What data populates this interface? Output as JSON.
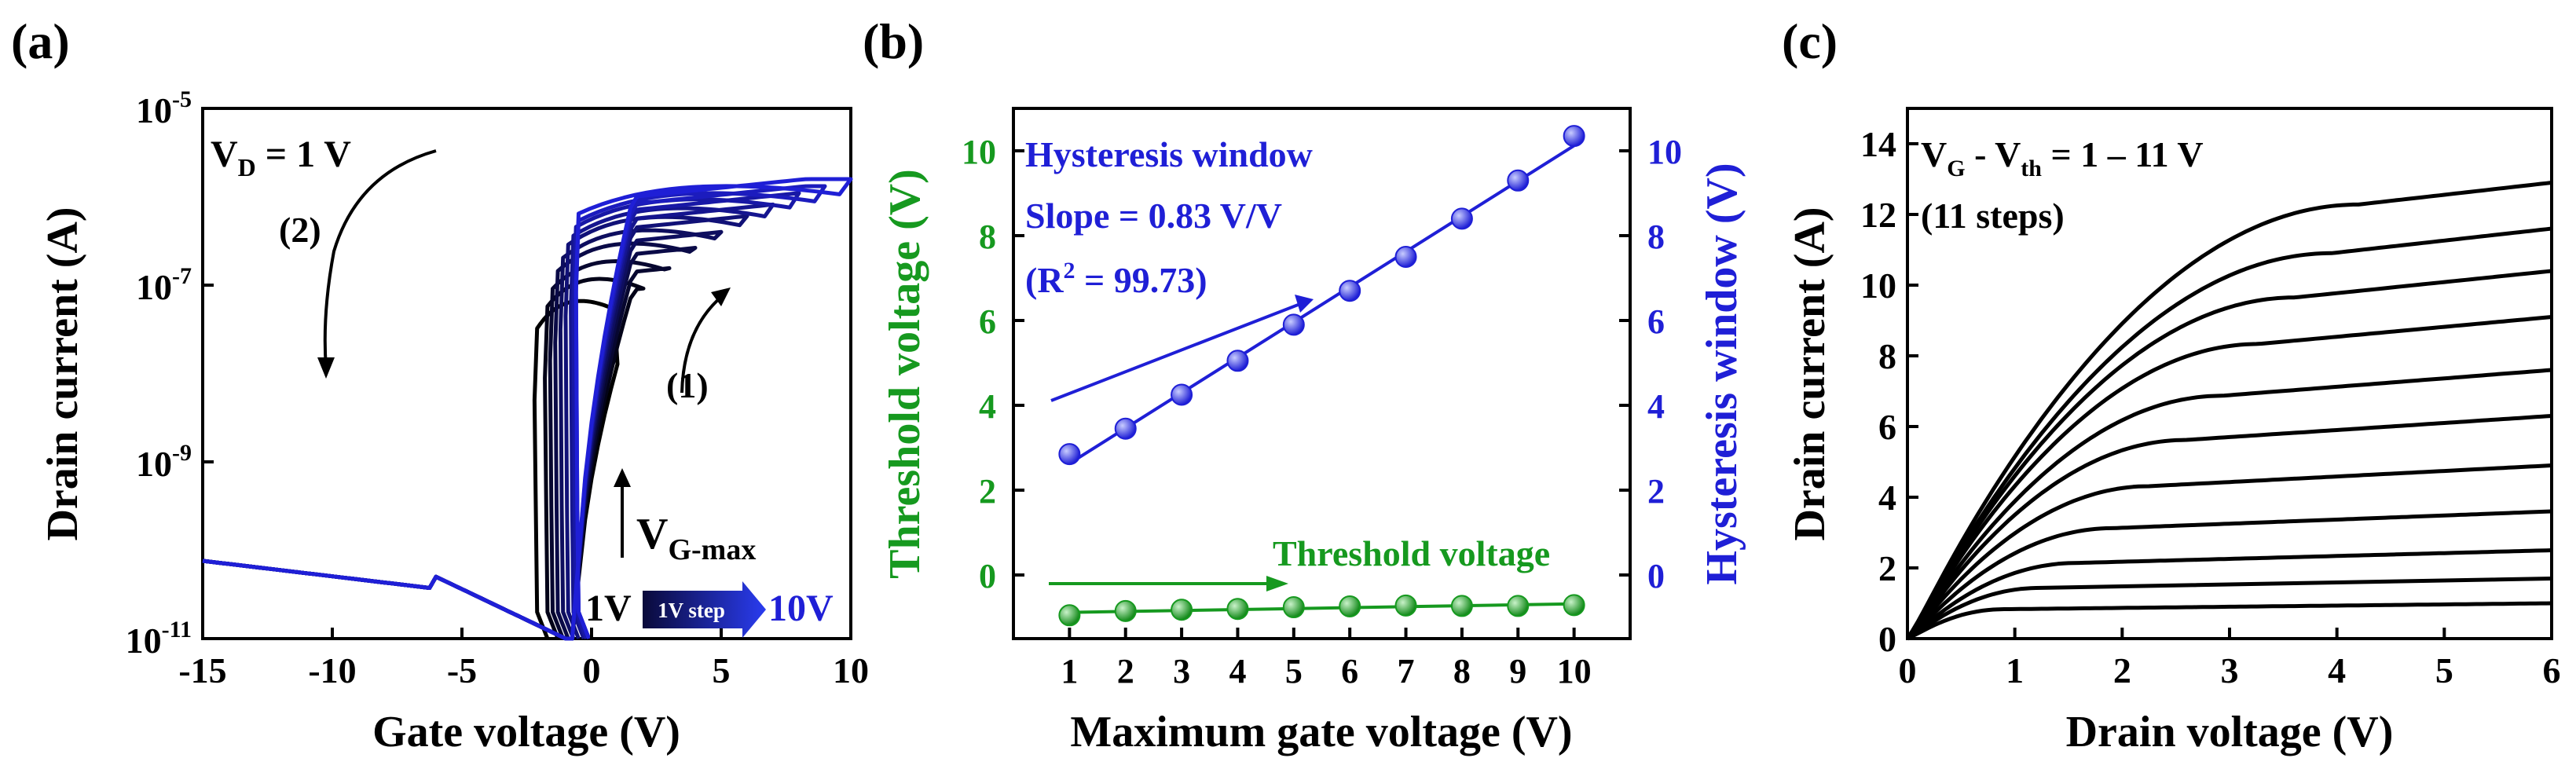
{
  "colors": {
    "black": "#000000",
    "blue": "#1f1fd6",
    "green": "#16991f"
  },
  "chart_data": [
    {
      "panel": "(a)",
      "type": "line",
      "title": "",
      "xlabel": "Gate voltage (V)",
      "ylabel": "Drain current (A)",
      "xlim": [
        -15,
        10
      ],
      "ylim_log10": [
        -11,
        -5
      ],
      "x_ticks": [
        "-15",
        "-10",
        "-5",
        "0",
        "5",
        "10"
      ],
      "y_ticks": [
        {
          "base": "10",
          "exp": "-11"
        },
        {
          "base": "10",
          "exp": "-9"
        },
        {
          "base": "10",
          "exp": "-7"
        },
        {
          "base": "10",
          "exp": "-5"
        }
      ],
      "annotations": {
        "vd_main": "V",
        "vd_sub": "D",
        "vd_rest": " = 1 V",
        "sweep1": "(1)",
        "sweep2": "(2)",
        "vgmax_main": "V",
        "vgmax_sub": "G-max",
        "range_start": "1V",
        "range_step": "1V step",
        "range_end": "10V"
      },
      "series_param": "V_G-max",
      "series": [
        {
          "name": "V_G-max = 1 V",
          "vgmax": 1,
          "hysteresis_window_v": 2.9,
          "i_on_log10": -7.1
        },
        {
          "name": "V_G-max = 2 V",
          "vgmax": 2,
          "hysteresis_window_v": 3.5,
          "i_on_log10": -6.85
        },
        {
          "name": "V_G-max = 3 V",
          "vgmax": 3,
          "hysteresis_window_v": 4.3,
          "i_on_log10": -6.65
        },
        {
          "name": "V_G-max = 4 V",
          "vgmax": 4,
          "hysteresis_window_v": 5.1,
          "i_on_log10": -6.45
        },
        {
          "name": "V_G-max = 5 V",
          "vgmax": 5,
          "hysteresis_window_v": 5.9,
          "i_on_log10": -6.3
        },
        {
          "name": "V_G-max = 6 V",
          "vgmax": 6,
          "hysteresis_window_v": 6.7,
          "i_on_log10": -6.15
        },
        {
          "name": "V_G-max = 7 V",
          "vgmax": 7,
          "hysteresis_window_v": 7.5,
          "i_on_log10": -6.05
        },
        {
          "name": "V_G-max = 8 V",
          "vgmax": 8,
          "hysteresis_window_v": 8.4,
          "i_on_log10": -5.95
        },
        {
          "name": "V_G-max = 9 V",
          "vgmax": 9,
          "hysteresis_window_v": 9.3,
          "i_on_log10": -5.88
        },
        {
          "name": "V_G-max = 10 V",
          "vgmax": 10,
          "hysteresis_window_v": 10.3,
          "i_on_log10": -5.8
        }
      ]
    },
    {
      "panel": "(b)",
      "type": "scatter",
      "xlabel": "Maximum gate voltage (V)",
      "ylabel_left": "Threshold voltage (V)",
      "ylabel_right": "Hysteresis window (V)",
      "xlim": [
        0,
        11
      ],
      "ylim": [
        -1.5,
        11
      ],
      "x_ticks": [
        "1",
        "2",
        "3",
        "4",
        "5",
        "6",
        "7",
        "8",
        "9",
        "10"
      ],
      "y_ticks_left": [
        "0",
        "2",
        "4",
        "6",
        "8",
        "10"
      ],
      "y_ticks_right": [
        "0",
        "2",
        "4",
        "6",
        "8",
        "10"
      ],
      "labels": {
        "hysteresis_label": "Hysteresis window",
        "slope": "Slope = 0.83 V/V",
        "r2_open": "(R",
        "r2_exp": "2",
        "r2_close": " = 99.73)",
        "threshold_label": "Threshold voltage"
      },
      "x": [
        1,
        2,
        3,
        4,
        5,
        6,
        7,
        8,
        9,
        10
      ],
      "series": [
        {
          "name": "Hysteresis window",
          "axis": "right",
          "values": [
            2.85,
            3.45,
            4.25,
            5.05,
            5.9,
            6.7,
            7.5,
            8.4,
            9.3,
            10.35
          ],
          "fit": {
            "slope": 0.83,
            "r2": 99.73
          }
        },
        {
          "name": "Threshold voltage",
          "axis": "left",
          "values": [
            -0.95,
            -0.85,
            -0.82,
            -0.8,
            -0.76,
            -0.74,
            -0.72,
            -0.73,
            -0.73,
            -0.71
          ]
        }
      ]
    },
    {
      "panel": "(c)",
      "type": "line",
      "xlabel": "Drain voltage (V)",
      "ylabel": "Drain current (A)",
      "xlim": [
        0,
        6
      ],
      "ylim": [
        0,
        15
      ],
      "x_ticks": [
        "0",
        "1",
        "2",
        "3",
        "4",
        "5",
        "6"
      ],
      "y_ticks": [
        "0",
        "2",
        "4",
        "6",
        "8",
        "10",
        "12",
        "14"
      ],
      "labels": {
        "cond_v1": "V",
        "cond_s1": "G",
        "cond_mid": " - V",
        "cond_s2": "th",
        "cond_rest": " = 1 – 11 V",
        "steps": "(11 steps)"
      },
      "series_param": "V_G - V_th",
      "series": [
        {
          "name": "1 V",
          "ov": 1,
          "y_at_6V": 1.0
        },
        {
          "name": "2 V",
          "ov": 2,
          "y_at_6V": 1.7
        },
        {
          "name": "3 V",
          "ov": 3,
          "y_at_6V": 2.5
        },
        {
          "name": "4 V",
          "ov": 4,
          "y_at_6V": 3.6
        },
        {
          "name": "5 V",
          "ov": 5,
          "y_at_6V": 4.9
        },
        {
          "name": "6 V",
          "ov": 6,
          "y_at_6V": 6.3
        },
        {
          "name": "7 V",
          "ov": 7,
          "y_at_6V": 7.6
        },
        {
          "name": "8 V",
          "ov": 8,
          "y_at_6V": 9.1
        },
        {
          "name": "9 V",
          "ov": 9,
          "y_at_6V": 10.4
        },
        {
          "name": "10 V",
          "ov": 10,
          "y_at_6V": 11.6
        },
        {
          "name": "11 V",
          "ov": 11,
          "y_at_6V": 12.9
        }
      ]
    }
  ]
}
